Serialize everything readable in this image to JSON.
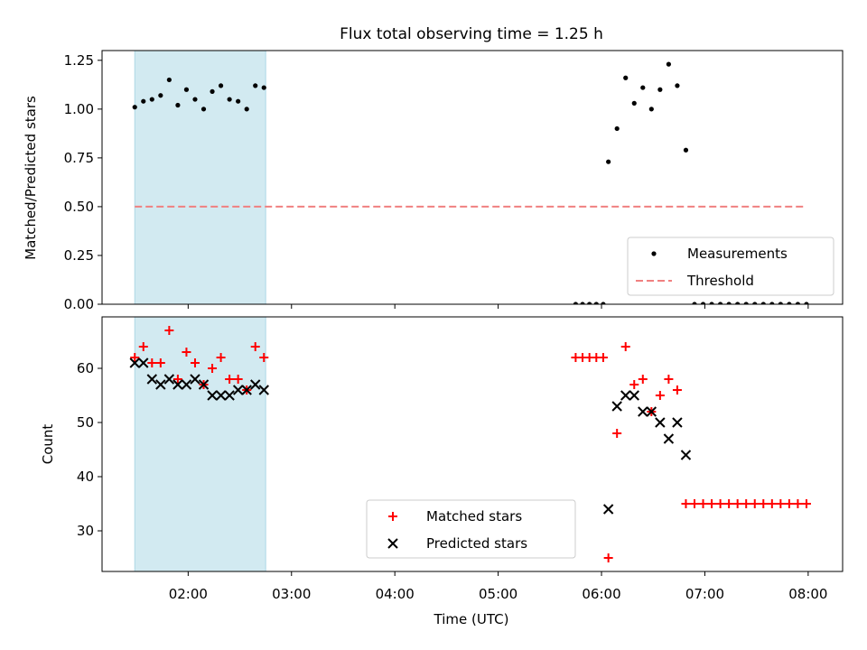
{
  "figure": {
    "title": "Flux total observing time = 1.25 h"
  },
  "chart_data": [
    {
      "type": "scatter",
      "panel": "top",
      "title": "Flux total observing time = 1.25 h",
      "xlabel": "",
      "ylabel": "Matched/Predicted stars",
      "xlim": [
        "01:10",
        "08:20"
      ],
      "ylim": [
        0,
        1.3
      ],
      "yticks": [
        0.0,
        0.25,
        0.5,
        0.75,
        1.0,
        1.25
      ],
      "ytick_labels": [
        "0.00",
        "0.25",
        "0.50",
        "0.75",
        "1.00",
        "1.25"
      ],
      "shaded_span": {
        "x": [
          "01:29",
          "02:45"
        ],
        "color": "#add8e6"
      },
      "legend": {
        "position": "lower right"
      },
      "series": [
        {
          "name": "Measurements",
          "kind": "dot",
          "color": "#000000",
          "points": [
            [
              "01:29",
              1.01
            ],
            [
              "01:34",
              1.04
            ],
            [
              "01:39",
              1.05
            ],
            [
              "01:44",
              1.07
            ],
            [
              "01:49",
              1.15
            ],
            [
              "01:54",
              1.02
            ],
            [
              "01:59",
              1.1
            ],
            [
              "02:04",
              1.05
            ],
            [
              "02:09",
              1.0
            ],
            [
              "02:14",
              1.09
            ],
            [
              "02:19",
              1.12
            ],
            [
              "02:24",
              1.05
            ],
            [
              "02:29",
              1.04
            ],
            [
              "02:34",
              1.0
            ],
            [
              "02:39",
              1.12
            ],
            [
              "02:44",
              1.11
            ],
            [
              "05:45",
              0.0
            ],
            [
              "05:49",
              0.0
            ],
            [
              "05:53",
              0.0
            ],
            [
              "05:57",
              0.0
            ],
            [
              "06:01",
              0.0
            ],
            [
              "06:04",
              0.73
            ],
            [
              "06:09",
              0.9
            ],
            [
              "06:14",
              1.16
            ],
            [
              "06:19",
              1.03
            ],
            [
              "06:24",
              1.11
            ],
            [
              "06:29",
              1.0
            ],
            [
              "06:34",
              1.1
            ],
            [
              "06:39",
              1.23
            ],
            [
              "06:44",
              1.12
            ],
            [
              "06:49",
              0.79
            ],
            [
              "06:54",
              0.0
            ],
            [
              "06:59",
              0.0
            ],
            [
              "07:04",
              0.0
            ],
            [
              "07:09",
              0.0
            ],
            [
              "07:14",
              0.0
            ],
            [
              "07:19",
              0.0
            ],
            [
              "07:24",
              0.0
            ],
            [
              "07:29",
              0.0
            ],
            [
              "07:34",
              0.0
            ],
            [
              "07:39",
              0.0
            ],
            [
              "07:44",
              0.0
            ],
            [
              "07:49",
              0.0
            ],
            [
              "07:54",
              0.0
            ],
            [
              "07:59",
              0.0
            ]
          ]
        },
        {
          "name": "Threshold",
          "kind": "dashed-line",
          "color": "#f08080",
          "points": [
            [
              "01:29",
              0.5
            ],
            [
              "07:59",
              0.5
            ]
          ]
        }
      ]
    },
    {
      "type": "scatter",
      "panel": "bottom",
      "title": "",
      "xlabel": "Time (UTC)",
      "ylabel": "Count",
      "xlim": [
        "01:10",
        "08:20"
      ],
      "ylim": [
        22.5,
        69.5
      ],
      "xticks": [
        "02:00",
        "03:00",
        "04:00",
        "05:00",
        "06:00",
        "07:00",
        "08:00"
      ],
      "yticks": [
        30,
        40,
        50,
        60
      ],
      "ytick_labels": [
        "30",
        "40",
        "50",
        "60"
      ],
      "shaded_span": {
        "x": [
          "01:29",
          "02:45"
        ],
        "color": "#add8e6"
      },
      "legend": {
        "position": "lower center"
      },
      "series": [
        {
          "name": "Matched stars",
          "kind": "plus",
          "color": "#ff0000",
          "points": [
            [
              "01:29",
              62
            ],
            [
              "01:34",
              64
            ],
            [
              "01:39",
              61
            ],
            [
              "01:44",
              61
            ],
            [
              "01:49",
              67
            ],
            [
              "01:54",
              58
            ],
            [
              "01:59",
              63
            ],
            [
              "02:04",
              61
            ],
            [
              "02:09",
              57
            ],
            [
              "02:14",
              60
            ],
            [
              "02:19",
              62
            ],
            [
              "02:24",
              58
            ],
            [
              "02:29",
              58
            ],
            [
              "02:34",
              56
            ],
            [
              "02:39",
              64
            ],
            [
              "02:44",
              62
            ],
            [
              "05:45",
              62
            ],
            [
              "05:49",
              62
            ],
            [
              "05:53",
              62
            ],
            [
              "05:57",
              62
            ],
            [
              "06:01",
              62
            ],
            [
              "06:04",
              25
            ],
            [
              "06:09",
              48
            ],
            [
              "06:14",
              64
            ],
            [
              "06:19",
              57
            ],
            [
              "06:24",
              58
            ],
            [
              "06:29",
              52
            ],
            [
              "06:34",
              55
            ],
            [
              "06:39",
              58
            ],
            [
              "06:44",
              56
            ],
            [
              "06:49",
              35
            ],
            [
              "06:54",
              35
            ],
            [
              "06:59",
              35
            ],
            [
              "07:04",
              35
            ],
            [
              "07:09",
              35
            ],
            [
              "07:14",
              35
            ],
            [
              "07:19",
              35
            ],
            [
              "07:24",
              35
            ],
            [
              "07:29",
              35
            ],
            [
              "07:34",
              35
            ],
            [
              "07:39",
              35
            ],
            [
              "07:44",
              35
            ],
            [
              "07:49",
              35
            ],
            [
              "07:54",
              35
            ],
            [
              "07:59",
              35
            ]
          ]
        },
        {
          "name": "Predicted stars",
          "kind": "x",
          "color": "#000000",
          "points": [
            [
              "01:29",
              61
            ],
            [
              "01:34",
              61
            ],
            [
              "01:39",
              58
            ],
            [
              "01:44",
              57
            ],
            [
              "01:49",
              58
            ],
            [
              "01:54",
              57
            ],
            [
              "01:59",
              57
            ],
            [
              "02:04",
              58
            ],
            [
              "02:09",
              57
            ],
            [
              "02:14",
              55
            ],
            [
              "02:19",
              55
            ],
            [
              "02:24",
              55
            ],
            [
              "02:29",
              56
            ],
            [
              "02:34",
              56
            ],
            [
              "02:39",
              57
            ],
            [
              "02:44",
              56
            ],
            [
              "06:04",
              34
            ],
            [
              "06:09",
              53
            ],
            [
              "06:14",
              55
            ],
            [
              "06:19",
              55
            ],
            [
              "06:24",
              52
            ],
            [
              "06:29",
              52
            ],
            [
              "06:34",
              50
            ],
            [
              "06:39",
              47
            ],
            [
              "06:44",
              50
            ],
            [
              "06:49",
              44
            ]
          ]
        }
      ]
    }
  ]
}
